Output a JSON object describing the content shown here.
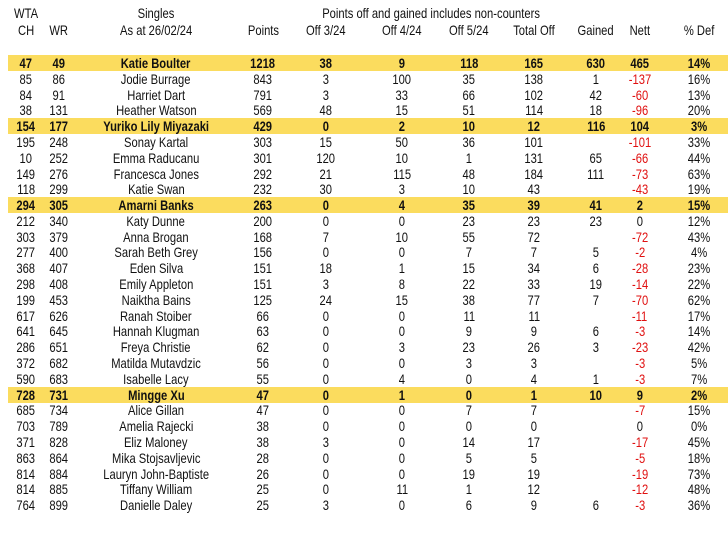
{
  "header": {
    "line1": {
      "wta": "WTA",
      "singles": "Singles",
      "note": "Points off and gained includes non-counters"
    },
    "columns": [
      "CH",
      "WR",
      "As at 26/02/24",
      "Points",
      "Off 3/24",
      "Off 4/24",
      "Off 5/24",
      "Total Off",
      "Gained",
      "Nett",
      "% Def"
    ]
  },
  "colors": {
    "highlight": "#fbdc5e",
    "negative": "#e01010"
  },
  "rows": [
    {
      "ch": "47",
      "wr": "49",
      "name": "Katie Boulter",
      "points": "1218",
      "off3": "38",
      "off4": "9",
      "off5": "118",
      "total": "165",
      "gained": "630",
      "nett": "465",
      "def": "14%",
      "highlight": true
    },
    {
      "ch": "85",
      "wr": "86",
      "name": "Jodie Burrage",
      "points": "843",
      "off3": "3",
      "off4": "100",
      "off5": "35",
      "total": "138",
      "gained": "1",
      "nett": "-137",
      "def": "16%"
    },
    {
      "ch": "84",
      "wr": "91",
      "name": "Harriet Dart",
      "points": "791",
      "off3": "3",
      "off4": "33",
      "off5": "66",
      "total": "102",
      "gained": "42",
      "nett": "-60",
      "def": "13%"
    },
    {
      "ch": "38",
      "wr": "131",
      "name": "Heather Watson",
      "points": "569",
      "off3": "48",
      "off4": "15",
      "off5": "51",
      "total": "114",
      "gained": "18",
      "nett": "-96",
      "def": "20%"
    },
    {
      "ch": "154",
      "wr": "177",
      "name": "Yuriko Lily Miyazaki",
      "points": "429",
      "off3": "0",
      "off4": "2",
      "off5": "10",
      "total": "12",
      "gained": "116",
      "nett": "104",
      "def": "3%",
      "highlight": true
    },
    {
      "ch": "195",
      "wr": "248",
      "name": "Sonay Kartal",
      "points": "303",
      "off3": "15",
      "off4": "50",
      "off5": "36",
      "total": "101",
      "gained": "",
      "nett": "-101",
      "def": "33%"
    },
    {
      "ch": "10",
      "wr": "252",
      "name": "Emma Raducanu",
      "points": "301",
      "off3": "120",
      "off4": "10",
      "off5": "1",
      "total": "131",
      "gained": "65",
      "nett": "-66",
      "def": "44%"
    },
    {
      "ch": "149",
      "wr": "276",
      "name": "Francesca Jones",
      "points": "292",
      "off3": "21",
      "off4": "115",
      "off5": "48",
      "total": "184",
      "gained": "111",
      "nett": "-73",
      "def": "63%"
    },
    {
      "ch": "118",
      "wr": "299",
      "name": "Katie Swan",
      "points": "232",
      "off3": "30",
      "off4": "3",
      "off5": "10",
      "total": "43",
      "gained": "",
      "nett": "-43",
      "def": "19%"
    },
    {
      "ch": "294",
      "wr": "305",
      "name": "Amarni Banks",
      "points": "263",
      "off3": "0",
      "off4": "4",
      "off5": "35",
      "total": "39",
      "gained": "41",
      "nett": "2",
      "def": "15%",
      "highlight": true
    },
    {
      "ch": "212",
      "wr": "340",
      "name": "Katy Dunne",
      "points": "200",
      "off3": "0",
      "off4": "0",
      "off5": "23",
      "total": "23",
      "gained": "23",
      "nett": "0",
      "def": "12%"
    },
    {
      "ch": "303",
      "wr": "379",
      "name": "Anna Brogan",
      "points": "168",
      "off3": "7",
      "off4": "10",
      "off5": "55",
      "total": "72",
      "gained": "",
      "nett": "-72",
      "def": "43%"
    },
    {
      "ch": "277",
      "wr": "400",
      "name": "Sarah Beth Grey",
      "points": "156",
      "off3": "0",
      "off4": "0",
      "off5": "7",
      "total": "7",
      "gained": "5",
      "nett": "-2",
      "def": "4%"
    },
    {
      "ch": "368",
      "wr": "407",
      "name": "Eden Silva",
      "points": "151",
      "off3": "18",
      "off4": "1",
      "off5": "15",
      "total": "34",
      "gained": "6",
      "nett": "-28",
      "def": "23%"
    },
    {
      "ch": "298",
      "wr": "408",
      "name": "Emily Appleton",
      "points": "151",
      "off3": "3",
      "off4": "8",
      "off5": "22",
      "total": "33",
      "gained": "19",
      "nett": "-14",
      "def": "22%"
    },
    {
      "ch": "199",
      "wr": "453",
      "name": "Naiktha Bains",
      "points": "125",
      "off3": "24",
      "off4": "15",
      "off5": "38",
      "total": "77",
      "gained": "7",
      "nett": "-70",
      "def": "62%"
    },
    {
      "ch": "617",
      "wr": "626",
      "name": "Ranah Stoiber",
      "points": "66",
      "off3": "0",
      "off4": "0",
      "off5": "11",
      "total": "11",
      "gained": "",
      "nett": "-11",
      "def": "17%"
    },
    {
      "ch": "641",
      "wr": "645",
      "name": "Hannah Klugman",
      "points": "63",
      "off3": "0",
      "off4": "0",
      "off5": "9",
      "total": "9",
      "gained": "6",
      "nett": "-3",
      "def": "14%"
    },
    {
      "ch": "286",
      "wr": "651",
      "name": "Freya Christie",
      "points": "62",
      "off3": "0",
      "off4": "3",
      "off5": "23",
      "total": "26",
      "gained": "3",
      "nett": "-23",
      "def": "42%"
    },
    {
      "ch": "372",
      "wr": "682",
      "name": "Matilda Mutavdzic",
      "points": "56",
      "off3": "0",
      "off4": "0",
      "off5": "3",
      "total": "3",
      "gained": "",
      "nett": "-3",
      "def": "5%"
    },
    {
      "ch": "590",
      "wr": "683",
      "name": "Isabelle Lacy",
      "points": "55",
      "off3": "0",
      "off4": "4",
      "off5": "0",
      "total": "4",
      "gained": "1",
      "nett": "-3",
      "def": "7%"
    },
    {
      "ch": "728",
      "wr": "731",
      "name": "Mingge Xu",
      "points": "47",
      "off3": "0",
      "off4": "1",
      "off5": "0",
      "total": "1",
      "gained": "10",
      "nett": "9",
      "def": "2%",
      "highlight": true
    },
    {
      "ch": "685",
      "wr": "734",
      "name": "Alice Gillan",
      "points": "47",
      "off3": "0",
      "off4": "0",
      "off5": "7",
      "total": "7",
      "gained": "",
      "nett": "-7",
      "def": "15%"
    },
    {
      "ch": "703",
      "wr": "789",
      "name": "Amelia Rajecki",
      "points": "38",
      "off3": "0",
      "off4": "0",
      "off5": "0",
      "total": "0",
      "gained": "",
      "nett": "0",
      "def": "0%"
    },
    {
      "ch": "371",
      "wr": "828",
      "name": "Eliz Maloney",
      "points": "38",
      "off3": "3",
      "off4": "0",
      "off5": "14",
      "total": "17",
      "gained": "",
      "nett": "-17",
      "def": "45%"
    },
    {
      "ch": "863",
      "wr": "864",
      "name": "Mika Stojsavljevic",
      "points": "28",
      "off3": "0",
      "off4": "0",
      "off5": "5",
      "total": "5",
      "gained": "",
      "nett": "-5",
      "def": "18%"
    },
    {
      "ch": "814",
      "wr": "884",
      "name": "Lauryn John-Baptiste",
      "points": "26",
      "off3": "0",
      "off4": "0",
      "off5": "19",
      "total": "19",
      "gained": "",
      "nett": "-19",
      "def": "73%"
    },
    {
      "ch": "814",
      "wr": "885",
      "name": "Tiffany William",
      "points": "25",
      "off3": "0",
      "off4": "11",
      "off5": "1",
      "total": "12",
      "gained": "",
      "nett": "-12",
      "def": "48%"
    },
    {
      "ch": "764",
      "wr": "899",
      "name": "Danielle Daley",
      "points": "25",
      "off3": "3",
      "off4": "0",
      "off5": "6",
      "total": "9",
      "gained": "6",
      "nett": "-3",
      "def": "36%"
    }
  ]
}
